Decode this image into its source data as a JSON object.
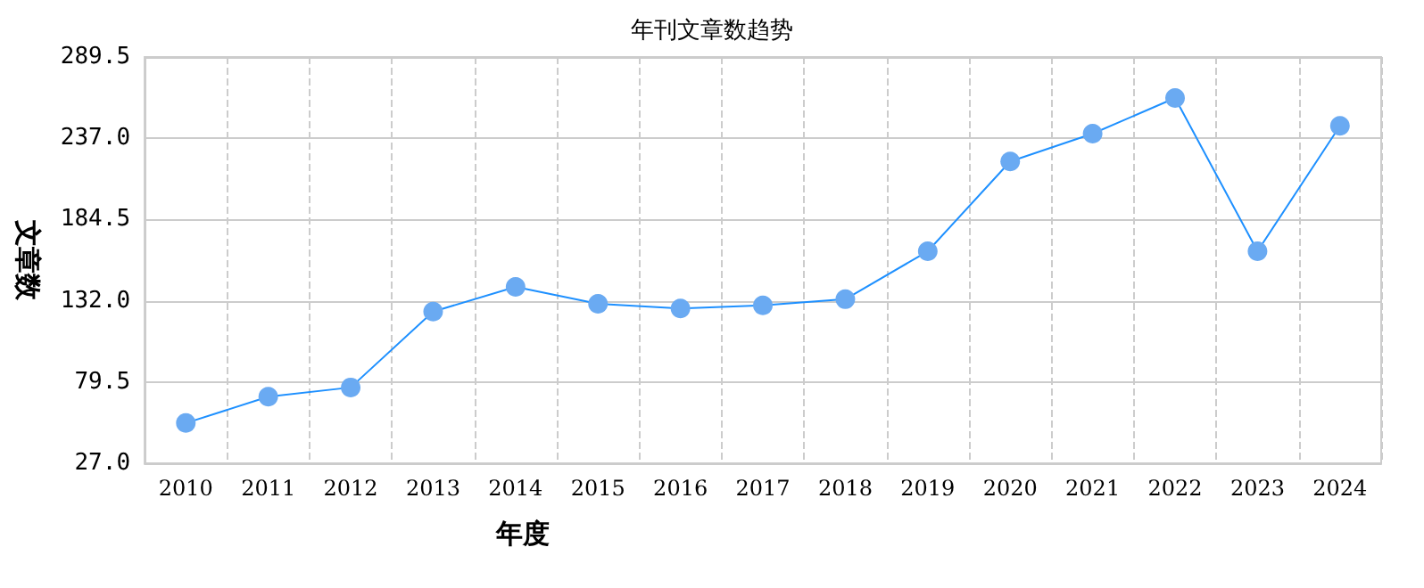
{
  "chart_data": {
    "type": "line",
    "title": "年刊文章数趋势",
    "xlabel": "年度",
    "ylabel": "文章数",
    "categories": [
      "2010",
      "2011",
      "2012",
      "2013",
      "2014",
      "2015",
      "2016",
      "2017",
      "2018",
      "2019",
      "2020",
      "2021",
      "2022",
      "2023",
      "2024"
    ],
    "series": [
      {
        "color": "#6aaaf2",
        "values": [
          53,
          70,
          76,
          125,
          141,
          130,
          127,
          129,
          133,
          164,
          222,
          240,
          263,
          164,
          245
        ]
      }
    ],
    "ylim": [
      27,
      289.5
    ],
    "yticks": [
      {
        "value": 27,
        "label": "27.0"
      },
      {
        "value": 79.5,
        "label": "79.5"
      },
      {
        "value": 132,
        "label": "132.0"
      },
      {
        "value": 184.5,
        "label": "184.5"
      },
      {
        "value": 237,
        "label": "237.0"
      },
      {
        "value": 289.5,
        "label": "289.5"
      }
    ],
    "grid": true,
    "marker": "circle",
    "line_style": "solid"
  }
}
